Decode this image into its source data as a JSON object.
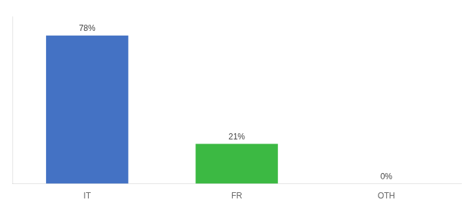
{
  "chart_data": {
    "type": "bar",
    "categories": [
      "IT",
      "FR",
      "OTH"
    ],
    "values": [
      78,
      21,
      0
    ],
    "value_labels": [
      "78%",
      "21%",
      "0%"
    ],
    "data_labels": true,
    "colors": [
      "#4472c4",
      "#3cb943",
      "#4472c4"
    ],
    "ylim": [
      0,
      88
    ],
    "tick_labels": "x",
    "grid": false
  }
}
